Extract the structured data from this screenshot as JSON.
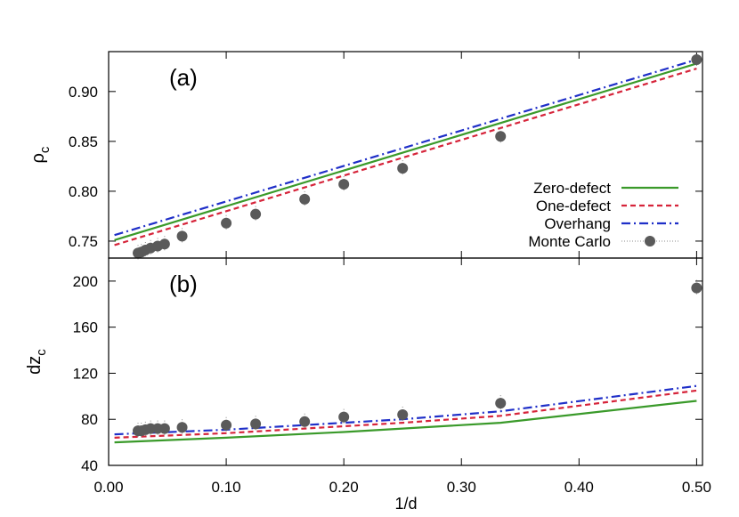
{
  "chart_data": [
    {
      "type": "line",
      "panel_label": "(a)",
      "ylabel": "ρc",
      "xlabel": "",
      "xlim": [
        0.0,
        0.505
      ],
      "ylim": [
        0.733,
        0.94
      ],
      "yticks": [
        0.75,
        0.8,
        0.85,
        0.9
      ],
      "ytick_labels": [
        "0.75",
        "0.80",
        "0.85",
        "0.90"
      ],
      "grid": false,
      "legend_position": "bottom-right",
      "series": [
        {
          "name": "Zero-defect",
          "color": "#3a9a2a",
          "dash": "",
          "x": [
            0.005,
            0.5
          ],
          "y": [
            0.751,
            0.928
          ]
        },
        {
          "name": "One-defect",
          "color": "#d6243a",
          "dash": "6,4",
          "x": [
            0.005,
            0.5
          ],
          "y": [
            0.746,
            0.923
          ]
        },
        {
          "name": "Overhang",
          "color": "#1f2fc8",
          "dash": "10,4,2,4",
          "x": [
            0.005,
            0.5
          ],
          "y": [
            0.756,
            0.932
          ]
        },
        {
          "name": "Monte Carlo",
          "color": "#5a5a5a",
          "markers": true,
          "x": [
            0.025,
            0.0278,
            0.0313,
            0.0357,
            0.0417,
            0.0476,
            0.0625,
            0.1,
            0.125,
            0.1667,
            0.2,
            0.25,
            0.3333,
            0.5
          ],
          "y": [
            0.738,
            0.739,
            0.741,
            0.743,
            0.745,
            0.747,
            0.755,
            0.768,
            0.777,
            0.792,
            0.807,
            0.823,
            0.855,
            0.932
          ]
        }
      ]
    },
    {
      "type": "line",
      "panel_label": "(b)",
      "ylabel": "dzc",
      "xlabel": "1/d",
      "xlim": [
        0.0,
        0.505
      ],
      "ylim": [
        40,
        220
      ],
      "yticks": [
        40,
        80,
        120,
        160,
        200
      ],
      "ytick_labels": [
        "40",
        "80",
        "120",
        "160",
        "200"
      ],
      "xticks": [
        0.0,
        0.1,
        0.2,
        0.3,
        0.4,
        0.5
      ],
      "xtick_labels": [
        "0.00",
        "0.10",
        "0.20",
        "0.30",
        "0.40",
        "0.50"
      ],
      "grid": false,
      "series": [
        {
          "name": "Zero-defect",
          "color": "#3a9a2a",
          "dash": "",
          "x": [
            0.005,
            0.1,
            0.2,
            0.25,
            0.3333,
            0.5
          ],
          "y": [
            60,
            64,
            69,
            72,
            77,
            96
          ]
        },
        {
          "name": "One-defect",
          "color": "#d6243a",
          "dash": "6,4",
          "x": [
            0.005,
            0.1,
            0.2,
            0.25,
            0.3333,
            0.5
          ],
          "y": [
            64,
            68,
            74,
            77,
            83,
            105
          ]
        },
        {
          "name": "Overhang",
          "color": "#1f2fc8",
          "dash": "10,4,2,4",
          "x": [
            0.005,
            0.1,
            0.2,
            0.25,
            0.3333,
            0.5
          ],
          "y": [
            67,
            71,
            77,
            80,
            87,
            109
          ]
        },
        {
          "name": "Monte Carlo",
          "color": "#5a5a5a",
          "markers": true,
          "x": [
            0.025,
            0.0278,
            0.0313,
            0.0357,
            0.0417,
            0.0476,
            0.0625,
            0.1,
            0.125,
            0.1667,
            0.2,
            0.25,
            0.3333,
            0.5
          ],
          "y": [
            70,
            70,
            71,
            72,
            72,
            72,
            73,
            75,
            76,
            78,
            82,
            84,
            94,
            194
          ]
        }
      ]
    }
  ]
}
